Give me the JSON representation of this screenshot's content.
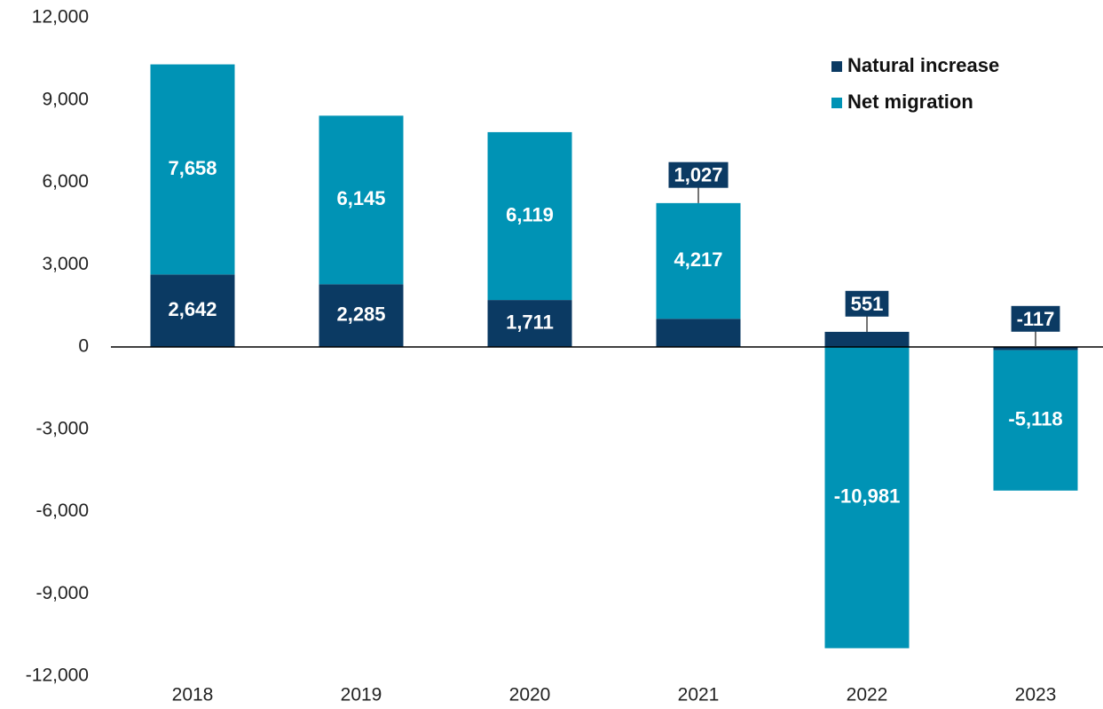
{
  "chart_data": {
    "type": "stacked-bar",
    "categories": [
      "2018",
      "2019",
      "2020",
      "2021",
      "2022",
      "2023"
    ],
    "series": [
      {
        "name": "Natural increase",
        "color": "#0b3a63",
        "values": [
          2642,
          2285,
          1711,
          1027,
          551,
          -117
        ],
        "value_labels": [
          "2,642",
          "2,285",
          "1,711",
          "1,027",
          "551",
          "-117"
        ]
      },
      {
        "name": "Net migration",
        "color": "#0093b5",
        "values": [
          7658,
          6145,
          6119,
          4217,
          -10981,
          -5118
        ],
        "value_labels": [
          "7,658",
          "6,145",
          "6,119",
          "4,217",
          "-10,981",
          "-5,118"
        ]
      }
    ],
    "ylim": [
      -12000,
      12000
    ],
    "yticks": [
      {
        "value": -12000,
        "label": "-12,000"
      },
      {
        "value": -9000,
        "label": "-9,000"
      },
      {
        "value": -6000,
        "label": "-6,000"
      },
      {
        "value": -3000,
        "label": "-3,000"
      },
      0,
      {
        "value": 3000,
        "label": "3,000"
      },
      {
        "value": 6000,
        "label": "6,000"
      },
      {
        "value": 9000,
        "label": "9,000"
      },
      {
        "value": 12000,
        "label": "12,000"
      }
    ],
    "legend": "top-right",
    "grid": false
  }
}
